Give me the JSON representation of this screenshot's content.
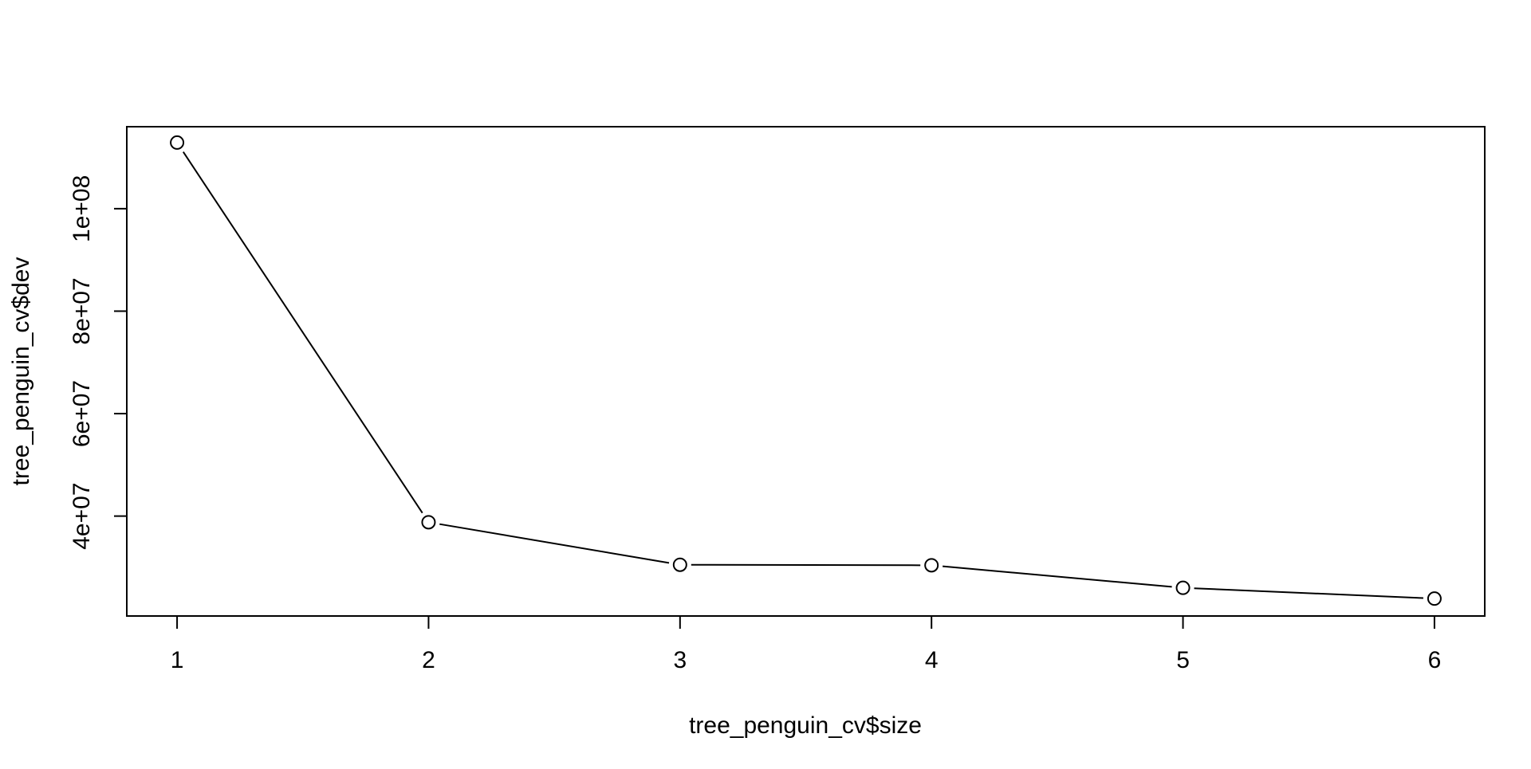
{
  "chart_data": {
    "type": "line",
    "title": "",
    "xlabel": "tree_penguin_cv$size",
    "ylabel": "tree_penguin_cv$dev",
    "x": [
      1,
      2,
      3,
      4,
      5,
      6
    ],
    "series": [
      {
        "values": [
          112900000,
          38800000,
          30500000,
          30400000,
          26000000,
          23900000
        ]
      }
    ],
    "xlim": [
      0.8,
      6.2
    ],
    "ylim": [
      20500000,
      116000000
    ],
    "x_ticks": [
      1,
      2,
      3,
      4,
      5,
      6
    ],
    "x_tick_labels": [
      "1",
      "2",
      "3",
      "4",
      "5",
      "6"
    ],
    "y_ticks": [
      40000000,
      60000000,
      80000000,
      100000000
    ],
    "y_tick_labels": [
      "4e+07",
      "6e+07",
      "8e+07",
      "1e+08"
    ],
    "grid": false,
    "legend": "none",
    "marker": "open-circle",
    "line_color": "#000000",
    "background_color": "#ffffff"
  }
}
